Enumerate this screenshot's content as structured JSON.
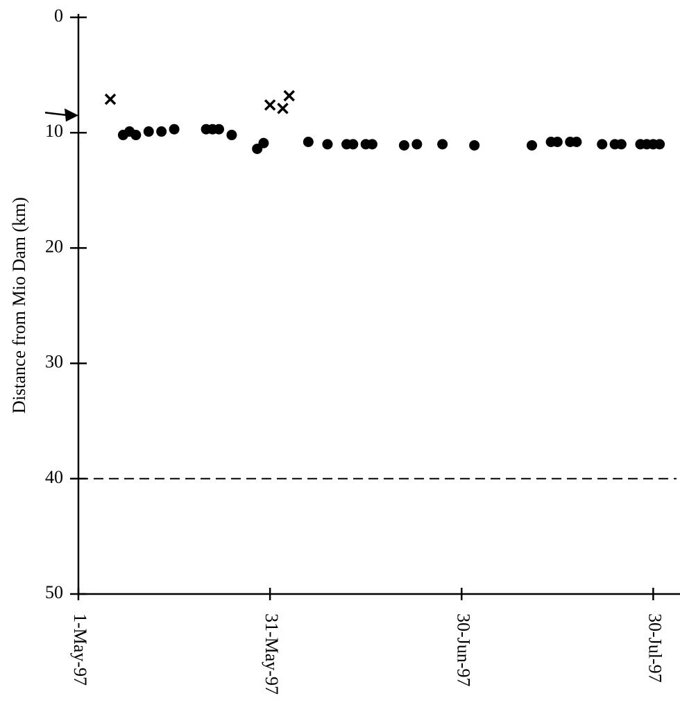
{
  "chart_data": {
    "type": "scatter",
    "y_label": "Distance from Mio Dam (km)",
    "xlim": [
      "1997-05-01",
      "1997-08-02"
    ],
    "xticks": [
      {
        "value": "1997-05-01",
        "label": "1-May-97"
      },
      {
        "value": "1997-05-31",
        "label": "31-May-97"
      },
      {
        "value": "1997-06-30",
        "label": "30-Jun-97"
      },
      {
        "value": "1997-07-30",
        "label": "30-Jul-97"
      }
    ],
    "ylim": [
      0,
      50
    ],
    "yticks": [
      0,
      10,
      20,
      30,
      40,
      50
    ],
    "invert_y": true,
    "reference_line": 40,
    "arrow_at": 8.5,
    "series": [
      {
        "marker": "cross",
        "color": "#000000",
        "x": [
          "1997-05-06",
          "1997-05-31",
          "1997-06-02",
          "1997-06-03"
        ],
        "values": [
          7.1,
          7.6,
          7.9,
          6.8
        ]
      },
      {
        "marker": "dot",
        "color": "#000000",
        "x": [
          "1997-05-08",
          "1997-05-09",
          "1997-05-10",
          "1997-05-12",
          "1997-05-14",
          "1997-05-16",
          "1997-05-21",
          "1997-05-22",
          "1997-05-23",
          "1997-05-25",
          "1997-05-29",
          "1997-05-30",
          "1997-06-06",
          "1997-06-09",
          "1997-06-12",
          "1997-06-13",
          "1997-06-15",
          "1997-06-16",
          "1997-06-21",
          "1997-06-23",
          "1997-06-27",
          "1997-07-02",
          "1997-07-11",
          "1997-07-14",
          "1997-07-15",
          "1997-07-17",
          "1997-07-18",
          "1997-07-22",
          "1997-07-24",
          "1997-07-25",
          "1997-07-28",
          "1997-07-29",
          "1997-07-30",
          "1997-07-31"
        ],
        "values": [
          10.2,
          9.9,
          10.2,
          9.9,
          9.9,
          9.7,
          9.7,
          9.7,
          9.7,
          10.2,
          11.4,
          10.9,
          10.8,
          11.0,
          11.0,
          11.0,
          11.0,
          11.0,
          11.1,
          11.0,
          11.0,
          11.1,
          11.1,
          10.8,
          10.8,
          10.8,
          10.8,
          11.0,
          11.0,
          11.0,
          11.0,
          11.0,
          11.0,
          11.0
        ]
      }
    ]
  }
}
